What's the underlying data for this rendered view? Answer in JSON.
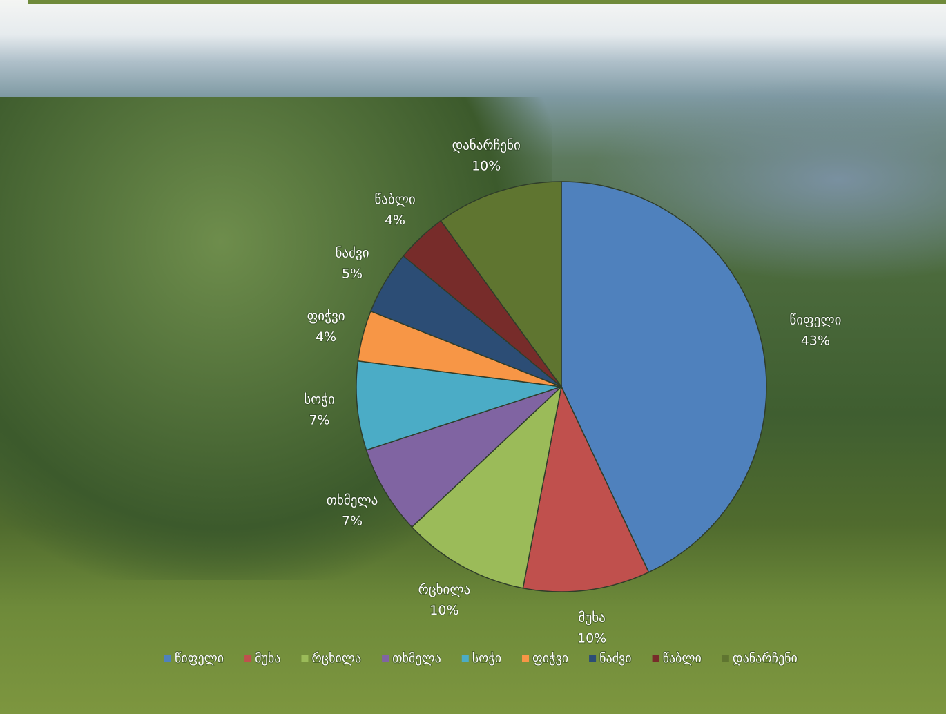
{
  "chart_data": {
    "type": "pie",
    "categories": [
      "წიფელი",
      "მუხა",
      "რცხილა",
      "თხმელა",
      "სოჭი",
      "ფიჭვი",
      "ნაძვი",
      "წაბლი",
      "დანარჩენი"
    ],
    "values": [
      43,
      10,
      10,
      7,
      7,
      4,
      5,
      4,
      10
    ],
    "value_labels": [
      "43%",
      "10%",
      "10%",
      "7%",
      "7%",
      "4%",
      "5%",
      "4%",
      "10%"
    ],
    "colors": [
      "#4f81bd",
      "#c0504d",
      "#9bbb59",
      "#8064a2",
      "#4bacc6",
      "#f79646",
      "#2c4d75",
      "#772c2a",
      "#5f7530"
    ],
    "legend": "bottom"
  }
}
